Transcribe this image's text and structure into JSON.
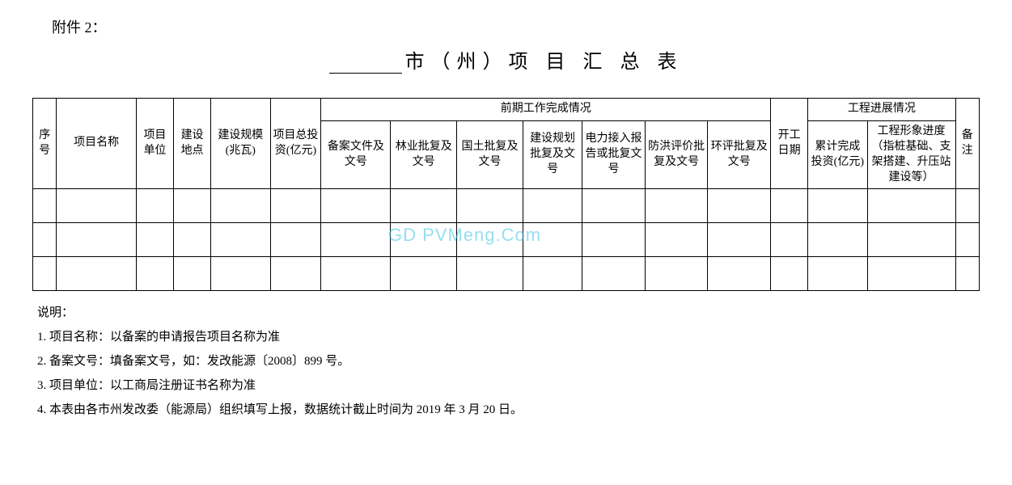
{
  "attachment_label": "附件 2：",
  "title_suffix": "市（州）项 目 汇 总 表",
  "watermark": "GD PVMeng.Com",
  "table": {
    "group_prework": "前期工作完成情况",
    "group_progress": "工程进展情况",
    "headers": {
      "seq": "序号",
      "name": "项目名称",
      "unit": "项目单位",
      "loc": "建设地点",
      "scale": "建设规模(兆瓦)",
      "invest": "项目总投资(亿元)",
      "doc1": "备案文件及文号",
      "doc2": "林业批复及文号",
      "doc3": "国土批复及文号",
      "doc4": "建设规划批复及文号",
      "doc5": "电力接入报告或批复文号",
      "doc6": "防洪评价批复及文号",
      "doc7": "环评批复及文号",
      "start": "开工日期",
      "acc": "累计完成投资(亿元)",
      "img": "工程形象进度（指桩基础、支架搭建、升压站建设等）",
      "note": "备注"
    },
    "data_row_count": 3
  },
  "notes": {
    "intro": "说明：",
    "n1": "1. 项目名称：以备案的申请报告项目名称为准",
    "n2": "2. 备案文号：填备案文号，如：发改能源〔2008〕899 号。",
    "n3": "3. 项目单位：以工商局注册证书名称为准",
    "n4": "4. 本表由各市州发改委（能源局）组织填写上报，数据统计截止时间为 2019 年 3 月 20 日。"
  },
  "colors": {
    "text": "#000000",
    "background": "#ffffff",
    "watermark": "#3fc4e4",
    "border": "#000000"
  },
  "typography": {
    "title_fontsize": 24,
    "header_fontsize": 14,
    "body_fontsize": 15,
    "font_family": "SimSun"
  }
}
